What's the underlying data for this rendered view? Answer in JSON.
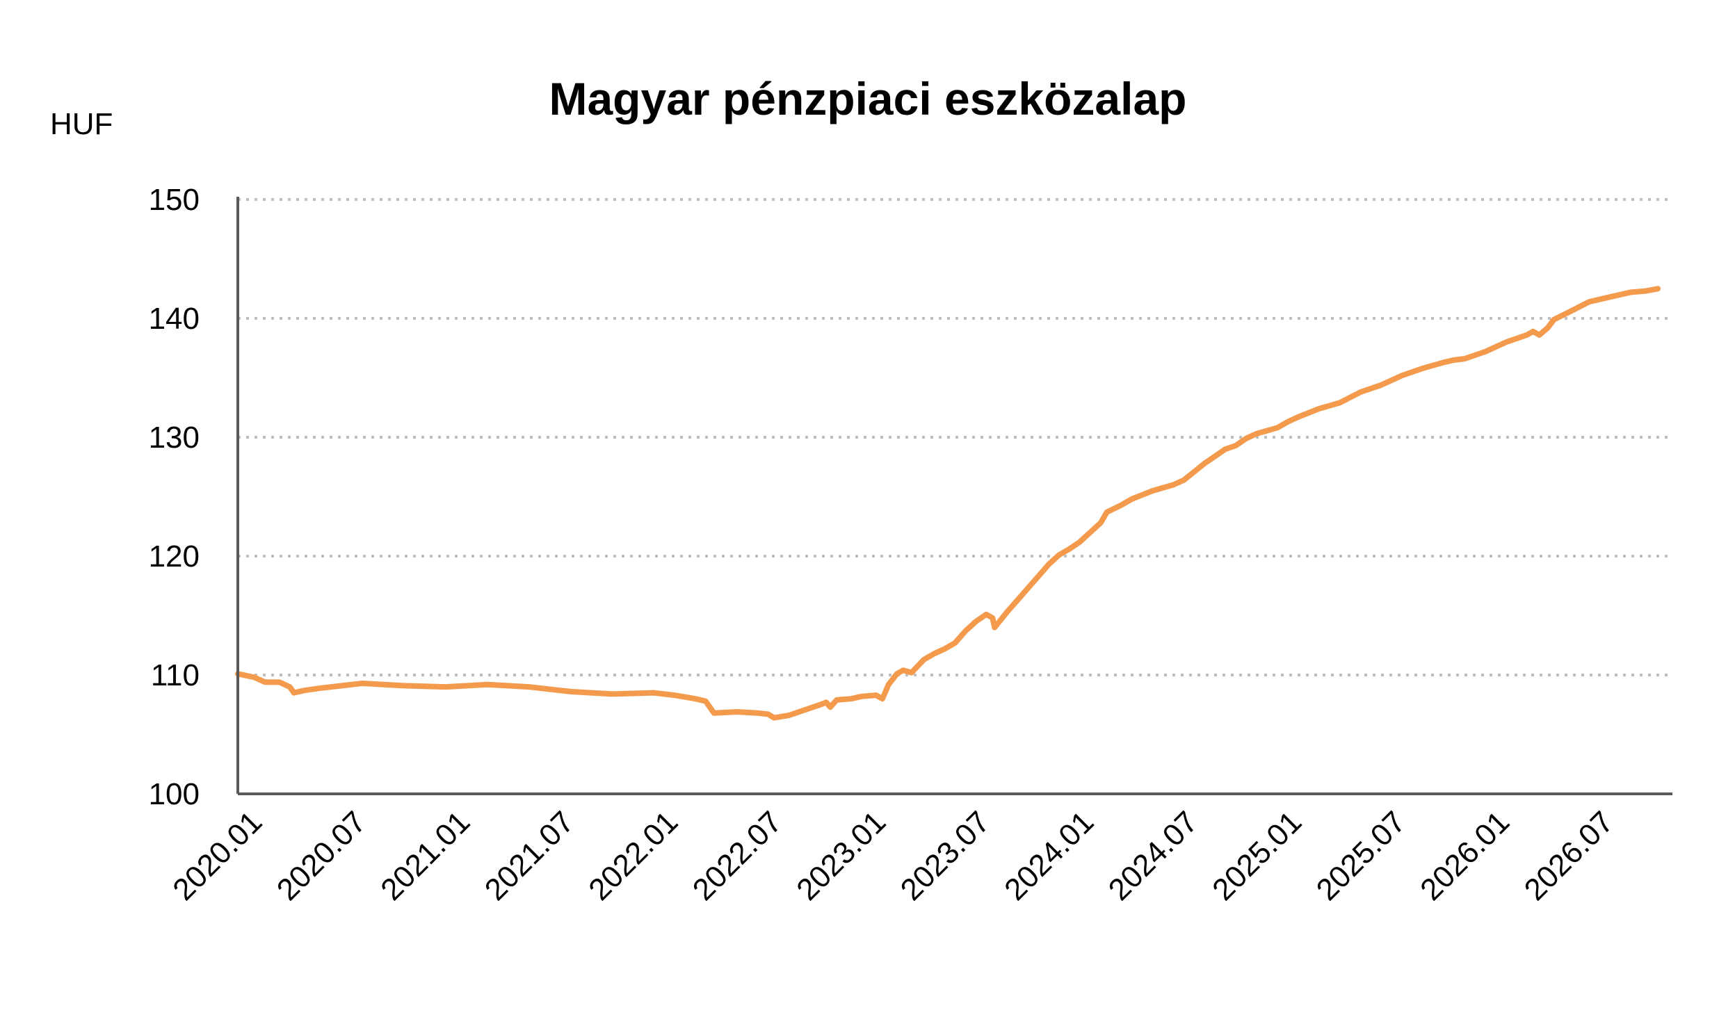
{
  "chart_data": {
    "type": "line",
    "title": "Magyar pénzpiaci eszközalap",
    "ylabel": "HUF",
    "xlabel": "",
    "ylim": [
      100,
      150
    ],
    "yticks": [
      100,
      110,
      120,
      130,
      140,
      150
    ],
    "grid": true,
    "legend": "none",
    "x_range": [
      2020.0,
      2026.9
    ],
    "x_ticks": [
      "2020.01",
      "2020.07",
      "2021.01",
      "2021.07",
      "2022.01",
      "2022.07",
      "2023.01",
      "2023.07",
      "2024.01",
      "2024.07",
      "2025.01",
      "2025.07",
      "2026.01",
      "2026.07"
    ],
    "series": [
      {
        "color": "#F39A4D",
        "points": [
          [
            2020.0,
            110.1
          ],
          [
            2020.08,
            109.8
          ],
          [
            2020.13,
            109.4
          ],
          [
            2020.2,
            109.4
          ],
          [
            2020.25,
            109.0
          ],
          [
            2020.27,
            108.5
          ],
          [
            2020.32,
            108.7
          ],
          [
            2020.4,
            108.9
          ],
          [
            2020.5,
            109.1
          ],
          [
            2020.6,
            109.3
          ],
          [
            2020.7,
            109.2
          ],
          [
            2020.8,
            109.1
          ],
          [
            2021.0,
            109.0
          ],
          [
            2021.2,
            109.2
          ],
          [
            2021.4,
            109.0
          ],
          [
            2021.6,
            108.6
          ],
          [
            2021.8,
            108.4
          ],
          [
            2022.0,
            108.5
          ],
          [
            2022.1,
            108.3
          ],
          [
            2022.2,
            108.0
          ],
          [
            2022.25,
            107.8
          ],
          [
            2022.29,
            106.8
          ],
          [
            2022.4,
            106.9
          ],
          [
            2022.5,
            106.8
          ],
          [
            2022.55,
            106.7
          ],
          [
            2022.58,
            106.4
          ],
          [
            2022.65,
            106.6
          ],
          [
            2022.7,
            106.9
          ],
          [
            2022.8,
            107.5
          ],
          [
            2022.83,
            107.7
          ],
          [
            2022.85,
            107.3
          ],
          [
            2022.88,
            107.9
          ],
          [
            2022.95,
            108.0
          ],
          [
            2023.0,
            108.2
          ],
          [
            2023.07,
            108.3
          ],
          [
            2023.1,
            108.0
          ],
          [
            2023.13,
            109.2
          ],
          [
            2023.17,
            110.1
          ],
          [
            2023.2,
            110.4
          ],
          [
            2023.24,
            110.2
          ],
          [
            2023.3,
            111.3
          ],
          [
            2023.35,
            111.8
          ],
          [
            2023.4,
            112.2
          ],
          [
            2023.45,
            112.7
          ],
          [
            2023.5,
            113.7
          ],
          [
            2023.55,
            114.5
          ],
          [
            2023.6,
            115.1
          ],
          [
            2023.63,
            114.8
          ],
          [
            2023.64,
            114.0
          ],
          [
            2023.7,
            115.3
          ],
          [
            2023.75,
            116.3
          ],
          [
            2023.8,
            117.3
          ],
          [
            2023.85,
            118.3
          ],
          [
            2023.9,
            119.3
          ],
          [
            2023.95,
            120.1
          ],
          [
            2024.0,
            120.6
          ],
          [
            2024.05,
            121.2
          ],
          [
            2024.1,
            122.0
          ],
          [
            2024.15,
            122.8
          ],
          [
            2024.18,
            123.7
          ],
          [
            2024.25,
            124.3
          ],
          [
            2024.3,
            124.8
          ],
          [
            2024.4,
            125.5
          ],
          [
            2024.5,
            126.0
          ],
          [
            2024.55,
            126.4
          ],
          [
            2024.6,
            127.1
          ],
          [
            2024.65,
            127.8
          ],
          [
            2024.7,
            128.4
          ],
          [
            2024.75,
            129.0
          ],
          [
            2024.8,
            129.3
          ],
          [
            2024.85,
            129.9
          ],
          [
            2024.9,
            130.3
          ],
          [
            2025.0,
            130.8
          ],
          [
            2025.05,
            131.3
          ],
          [
            2025.1,
            131.7
          ],
          [
            2025.2,
            132.4
          ],
          [
            2025.3,
            132.9
          ],
          [
            2025.4,
            133.8
          ],
          [
            2025.5,
            134.4
          ],
          [
            2025.6,
            135.2
          ],
          [
            2025.7,
            135.8
          ],
          [
            2025.8,
            136.3
          ],
          [
            2025.85,
            136.5
          ],
          [
            2025.9,
            136.6
          ],
          [
            2026.0,
            137.2
          ],
          [
            2026.1,
            138.0
          ],
          [
            2026.2,
            138.6
          ],
          [
            2026.23,
            138.9
          ],
          [
            2026.26,
            138.6
          ],
          [
            2026.3,
            139.2
          ],
          [
            2026.33,
            139.9
          ],
          [
            2026.4,
            140.5
          ],
          [
            2026.5,
            141.4
          ],
          [
            2026.6,
            141.8
          ],
          [
            2026.7,
            142.2
          ],
          [
            2026.77,
            142.3
          ],
          [
            2026.83,
            142.5
          ]
        ]
      }
    ]
  },
  "colors": {
    "line": "#F39A4D",
    "axis": "#595959",
    "grid": "#BFBFBF"
  }
}
